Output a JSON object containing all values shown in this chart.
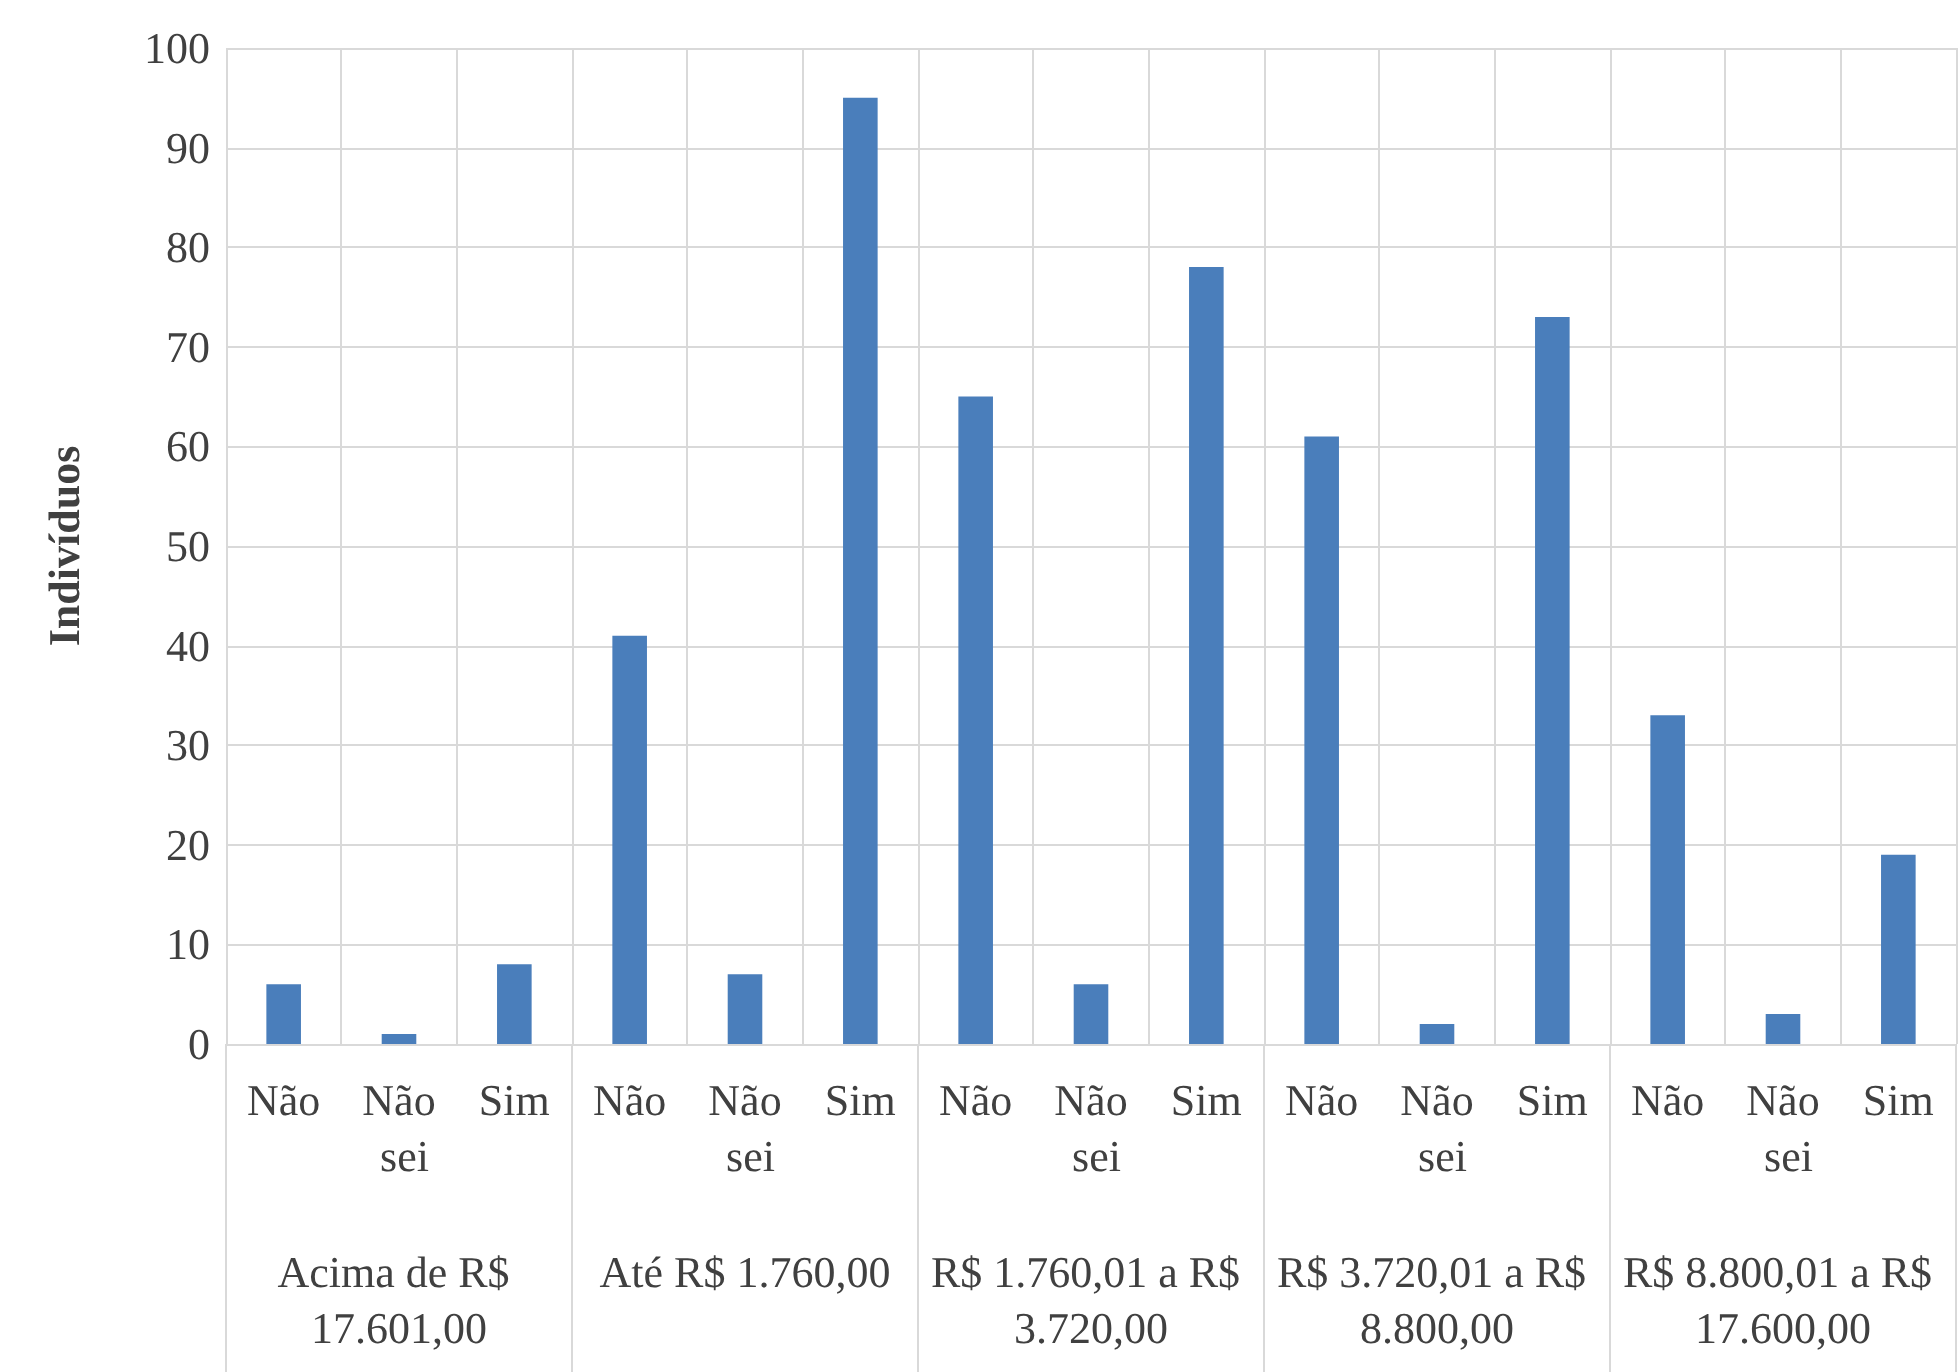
{
  "chart_data": {
    "type": "bar",
    "ylabel": "Indivíduos",
    "categories": [
      "Não",
      "Não sei",
      "Sim",
      "Não",
      "Não sei",
      "Sim",
      "Não",
      "Não sei",
      "Sim",
      "Não",
      "Não sei",
      "Sim",
      "Não",
      "Não sei",
      "Sim"
    ],
    "values": [
      6,
      1,
      8,
      41,
      7,
      95,
      65,
      6,
      78,
      61,
      2,
      73,
      33,
      3,
      19
    ],
    "color": "#4a7ebb",
    "annotations": [
      "Acima de R$ 17.601,00",
      "Até R$ 1.760,00",
      "R$ 1.760,01 a R$ 3.720,00",
      "R$ 3.720,01 a R$ 8.800,00",
      "R$ 8.800,01 a R$ 17.600,00"
    ],
    "ylim": [
      0,
      100
    ],
    "yticks": [
      0,
      10,
      20,
      30,
      40,
      50,
      60,
      70,
      80,
      90,
      100
    ],
    "grid": true
  }
}
